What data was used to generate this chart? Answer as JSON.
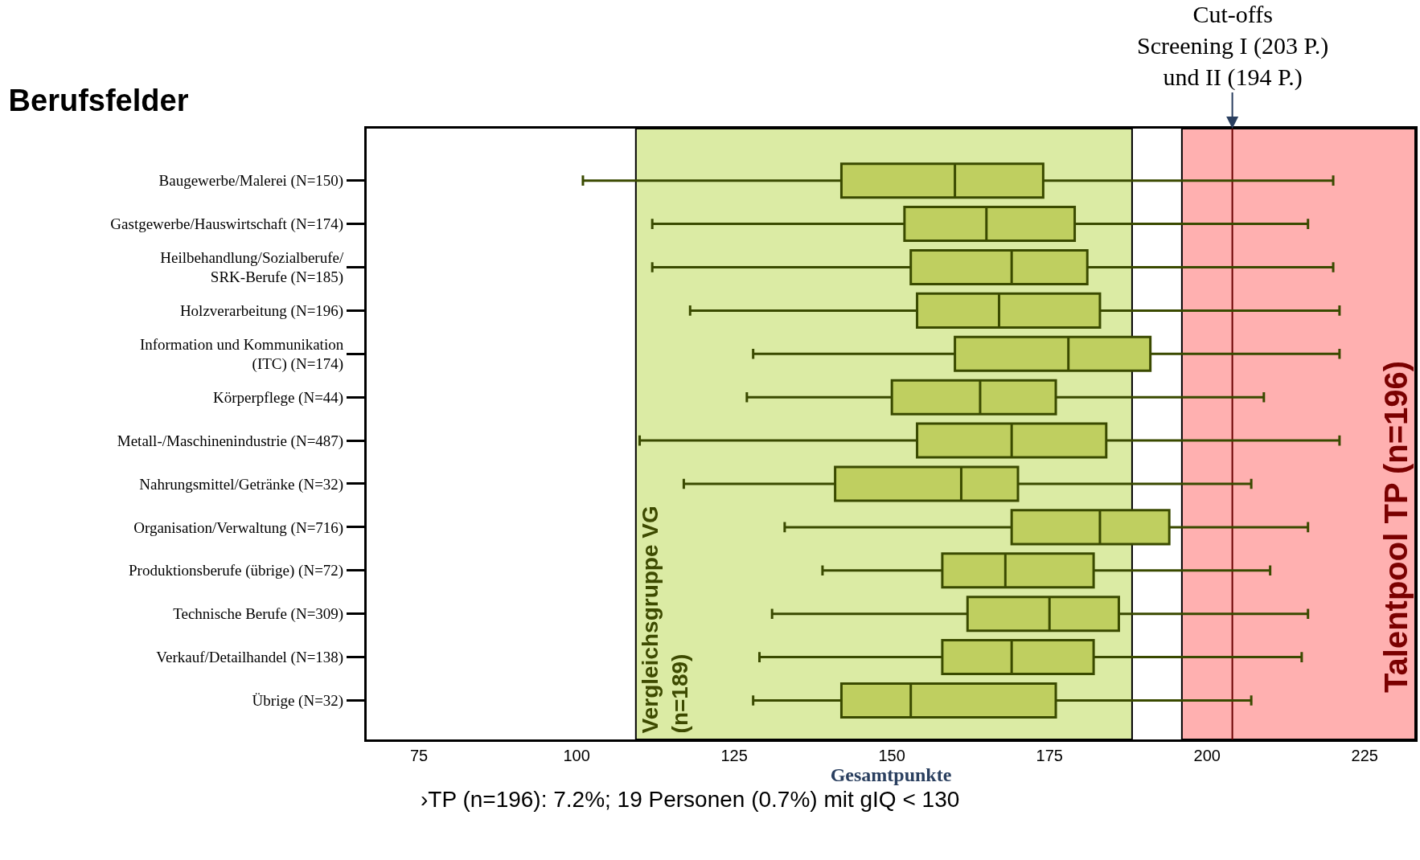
{
  "chart_data": {
    "type": "box",
    "orientation": "horizontal",
    "title": "Berufsfelder",
    "xlabel": "Gesamtpunkte",
    "categories": [
      "Baugewerbe/Malerei (N=150)",
      "Gastgewerbe/Hauswirtschaft (N=174)",
      "Heilbehandlung/Sozialberufe/\nSRK-Berufe (N=185)",
      "Holzverarbeitung (N=196)",
      "Information und Kommunikation\n(ITC) (N=174)",
      "Körperpflege (N=44)",
      "Metall-/Maschinenindustrie (N=487)",
      "Nahrungsmittel/Getränke (N=32)",
      "Organisation/Verwaltung (N=716)",
      "Produktionsberufe (übrige) (N=72)",
      "Technische Berufe (N=309)",
      "Verkauf/Detailhandel (N=138)",
      "Übrige (N=32)"
    ],
    "series": [
      {
        "color": "#bfcf60",
        "boxes": [
          {
            "low": 101,
            "q1": 142,
            "median": 160,
            "q3": 174,
            "high": 220
          },
          {
            "low": 112,
            "q1": 152,
            "median": 165,
            "q3": 179,
            "high": 216
          },
          {
            "low": 112,
            "q1": 153,
            "median": 169,
            "q3": 181,
            "high": 220
          },
          {
            "low": 118,
            "q1": 154,
            "median": 167,
            "q3": 183,
            "high": 221
          },
          {
            "low": 128,
            "q1": 160,
            "median": 178,
            "q3": 191,
            "high": 221
          },
          {
            "low": 127,
            "q1": 150,
            "median": 164,
            "q3": 176,
            "high": 209
          },
          {
            "low": 110,
            "q1": 154,
            "median": 169,
            "q3": 184,
            "high": 221
          },
          {
            "low": 117,
            "q1": 141,
            "median": 161,
            "q3": 170,
            "high": 207
          },
          {
            "low": 133,
            "q1": 169,
            "median": 183,
            "q3": 194,
            "high": 216
          },
          {
            "low": 139,
            "q1": 158,
            "median": 168,
            "q3": 182,
            "high": 210
          },
          {
            "low": 131,
            "q1": 162,
            "median": 175,
            "q3": 186,
            "high": 216
          },
          {
            "low": 129,
            "q1": 158,
            "median": 169,
            "q3": 182,
            "high": 215
          },
          {
            "low": 128,
            "q1": 142,
            "median": 153,
            "q3": 176,
            "high": 207
          }
        ]
      }
    ],
    "xlim": [
      66.7,
      233
    ],
    "xticks": [
      75,
      100,
      125,
      150,
      175,
      200,
      225
    ],
    "bands": [
      {
        "axis": "x",
        "from": 109.4,
        "to": 188.1,
        "label": "Vergleichsgruppe VG\n(n=189)",
        "color": "#dbeba4"
      },
      {
        "axis": "x",
        "from": 196,
        "to": 233,
        "label": "Talentpool TP (n=196)",
        "color": "#ffb0b0"
      }
    ],
    "ref_lines": [
      {
        "axis": "x",
        "value": 204,
        "label": "Cut-offs\nScreening I (203 P.)\nund II (194 P.)",
        "color": "#6b0000",
        "line_style": "solid"
      }
    ],
    "annotations": [
      "›TP (n=196): 7.2%; 19 Personen (0.7%) mit gIQ < 130"
    ],
    "grid": false
  }
}
